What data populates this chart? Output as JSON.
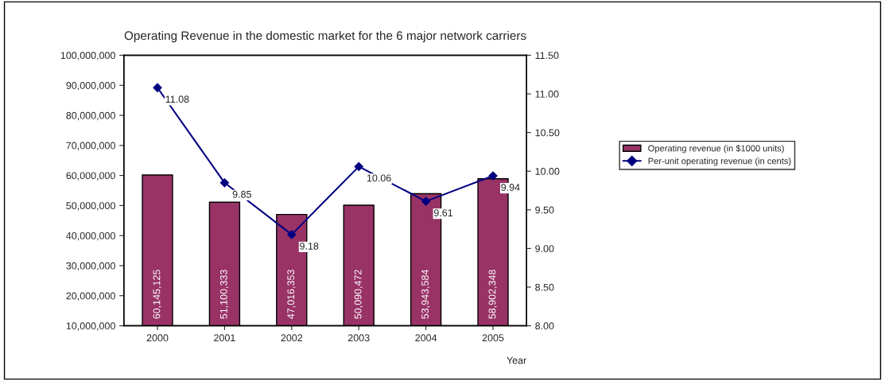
{
  "chart_data": {
    "type": "bar",
    "title": "Operating Revenue in the domestic market for the 6 major network carriers",
    "xlabel": "Year",
    "categories": [
      "2000",
      "2001",
      "2002",
      "2003",
      "2004",
      "2005"
    ],
    "series": [
      {
        "name": "Operating revenue (in $1000 units)",
        "color": "#993366",
        "values": [
          60145125,
          51100333,
          47016353,
          50090472,
          53943584,
          58902348
        ],
        "value_labels": [
          "60,145,125",
          "51,100,333",
          "47,016,353",
          "50,090,472",
          "53,943,584",
          "58,902,348"
        ]
      },
      {
        "name": "Per-unit operating revenue (in cents)",
        "type": "line",
        "axis": "y2",
        "color": "#000080",
        "marker": "diamond",
        "values": [
          11.08,
          9.85,
          9.18,
          10.06,
          9.61,
          9.94
        ],
        "value_labels": [
          "11.08",
          "9.85",
          "9.18",
          "10.06",
          "9.61",
          "9.94"
        ]
      }
    ],
    "ylim": [
      10000000,
      100000000
    ],
    "yticks": [
      {
        "value": 10000000,
        "label": "10,000,000"
      },
      {
        "value": 20000000,
        "label": "20,000,000"
      },
      {
        "value": 30000000,
        "label": "30,000,000"
      },
      {
        "value": 40000000,
        "label": "40,000,000"
      },
      {
        "value": 50000000,
        "label": "50,000,000"
      },
      {
        "value": 60000000,
        "label": "60,000,000"
      },
      {
        "value": 70000000,
        "label": "70,000,000"
      },
      {
        "value": 80000000,
        "label": "80,000,000"
      },
      {
        "value": 90000000,
        "label": "90,000,000"
      },
      {
        "value": 100000000,
        "label": "100,000,000"
      }
    ],
    "y2lim": [
      8.0,
      11.5
    ],
    "y2ticks": [
      {
        "value": 8.0,
        "label": "8.00"
      },
      {
        "value": 8.5,
        "label": "8.50"
      },
      {
        "value": 9.0,
        "label": "9.00"
      },
      {
        "value": 9.5,
        "label": "9.50"
      },
      {
        "value": 10.0,
        "label": "10.00"
      },
      {
        "value": 10.5,
        "label": "10.50"
      },
      {
        "value": 11.0,
        "label": "11.00"
      },
      {
        "value": 11.5,
        "label": "11.50"
      }
    ],
    "legend": "right",
    "grid": false
  }
}
